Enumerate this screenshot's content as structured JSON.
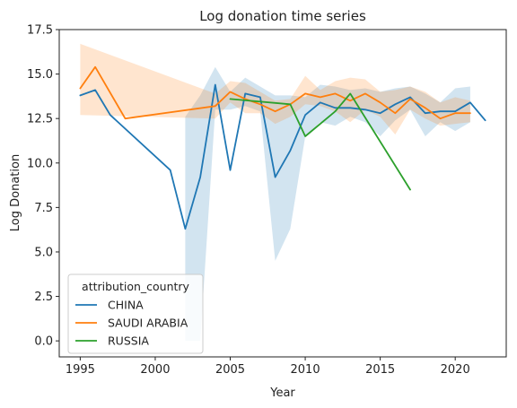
{
  "chart_data": {
    "type": "line",
    "title": "Log donation time series",
    "xlabel": "Year",
    "ylabel": "Log Donation",
    "xlim": [
      1993.6,
      2023.4
    ],
    "ylim": [
      -0.9,
      17.5
    ],
    "xticks": [
      1995,
      2000,
      2005,
      2010,
      2015,
      2020
    ],
    "yticks": [
      0.0,
      2.5,
      5.0,
      7.5,
      10.0,
      12.5,
      15.0,
      17.5
    ],
    "xtick_labels": [
      "1995",
      "2000",
      "2005",
      "2010",
      "2015",
      "2020"
    ],
    "ytick_labels": [
      "0.0",
      "2.5",
      "5.0",
      "7.5",
      "10.0",
      "12.5",
      "15.0",
      "17.5"
    ],
    "grid": false,
    "legend": {
      "title": "attribution_country",
      "placement": "lower-left"
    },
    "series": [
      {
        "name": "CHINA",
        "color": "#1f77b4",
        "x": [
          1995,
          1996,
          1997,
          2001,
          2002,
          2003,
          2004,
          2005,
          2006,
          2007,
          2008,
          2009,
          2010,
          2011,
          2012,
          2013,
          2014,
          2015,
          2016,
          2017,
          2018,
          2019,
          2020,
          2021,
          2022
        ],
        "values": [
          13.8,
          14.1,
          12.7,
          9.6,
          6.3,
          9.2,
          14.4,
          9.6,
          13.9,
          13.7,
          9.2,
          10.7,
          12.7,
          13.4,
          13.1,
          13.1,
          13.0,
          12.8,
          13.3,
          13.7,
          12.8,
          12.9,
          12.9,
          13.4,
          12.4
        ],
        "ci_x": [
          2002,
          2003,
          2004,
          2005,
          2006,
          2007,
          2008,
          2009,
          2010,
          2011,
          2012,
          2013,
          2014,
          2015,
          2016,
          2017,
          2018,
          2019,
          2020,
          2021
        ],
        "ci_lower": [
          0.0,
          0.0,
          13.0,
          13.0,
          13.2,
          12.9,
          4.5,
          6.3,
          11.5,
          12.3,
          12.1,
          12.6,
          12.3,
          11.5,
          12.4,
          13.0,
          11.5,
          12.3,
          11.8,
          12.3
        ],
        "ci_upper": [
          12.6,
          13.8,
          15.4,
          14.0,
          14.8,
          14.3,
          13.8,
          13.8,
          13.7,
          14.4,
          14.3,
          14.1,
          14.2,
          14.0,
          14.2,
          14.3,
          13.9,
          13.4,
          14.2,
          14.3
        ]
      },
      {
        "name": "SAUDI ARABIA",
        "color": "#ff7f0e",
        "x": [
          1995,
          1996,
          1998,
          2004,
          2005,
          2006,
          2007,
          2008,
          2009,
          2010,
          2011,
          2012,
          2013,
          2014,
          2015,
          2016,
          2017,
          2018,
          2019,
          2020,
          2021
        ],
        "values": [
          14.2,
          15.4,
          12.5,
          13.2,
          14.0,
          13.6,
          13.3,
          12.9,
          13.3,
          13.9,
          13.7,
          13.9,
          13.5,
          13.9,
          13.4,
          12.8,
          13.6,
          13.1,
          12.5,
          12.8,
          12.8
        ],
        "ci_x": [
          1995,
          2004,
          2005,
          2006,
          2007,
          2008,
          2009,
          2010,
          2011,
          2012,
          2013,
          2014,
          2015,
          2016,
          2017,
          2018,
          2019,
          2020,
          2021
        ],
        "ci_lower": [
          12.7,
          12.5,
          13.4,
          12.8,
          12.8,
          12.2,
          12.6,
          13.3,
          13.2,
          12.9,
          12.3,
          13.0,
          12.6,
          11.6,
          13.0,
          12.5,
          12.1,
          12.2,
          12.3
        ],
        "ci_upper": [
          16.7,
          13.9,
          14.6,
          14.5,
          14.0,
          13.5,
          13.6,
          14.9,
          14.1,
          14.6,
          14.8,
          14.7,
          14.0,
          14.1,
          14.3,
          14.0,
          13.4,
          13.7,
          13.5
        ]
      },
      {
        "name": "RUSSIA",
        "color": "#2ca02c",
        "x": [
          2005,
          2009,
          2010,
          2012,
          2013,
          2017
        ],
        "values": [
          13.6,
          13.3,
          11.5,
          12.9,
          13.9,
          8.5
        ]
      }
    ]
  }
}
